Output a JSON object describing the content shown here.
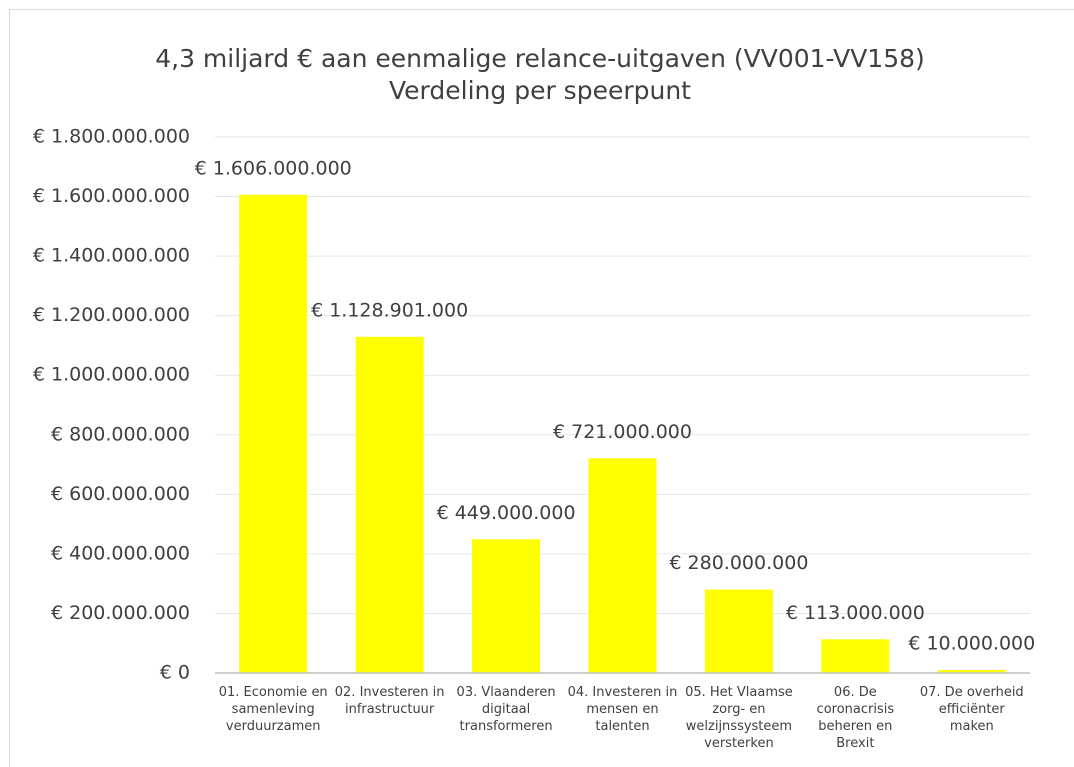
{
  "chart_data": {
    "type": "bar",
    "title": "4,3 miljard € aan eenmalige relance-uitgaven (VV001-VV158)",
    "subtitle": "Verdeling per speerpunt",
    "categories": [
      "01. Economie en samenleving verduurzamen",
      "02. Investeren in infrastructuur",
      "03. Vlaanderen digitaal transformeren",
      "04. Investeren in mensen en talenten",
      "05. Het Vlaamse zorg- en welzijnssysteem versterken",
      "06. De coronacrisis beheren en Brexit",
      "07. De overheid efficiënter maken"
    ],
    "values": [
      1606000000,
      1128901000,
      449000000,
      721000000,
      280000000,
      113000000,
      10000000
    ],
    "value_labels": [
      "€ 1.606.000.000",
      "€ 1.128.901.000",
      "€ 449.000.000",
      "€ 721.000.000",
      "€ 280.000.000",
      "€ 113.000.000",
      "€ 10.000.000"
    ],
    "color": "#ffff00",
    "ylim": [
      0,
      1800000000
    ],
    "yticks": [
      {
        "value": 0,
        "label": "€ 0"
      },
      {
        "value": 200000000,
        "label": "€ 200.000.000"
      },
      {
        "value": 400000000,
        "label": "€ 400.000.000"
      },
      {
        "value": 600000000,
        "label": "€ 600.000.000"
      },
      {
        "value": 800000000,
        "label": "€ 800.000.000"
      },
      {
        "value": 1000000000,
        "label": "€ 1.000.000.000"
      },
      {
        "value": 1200000000,
        "label": "€ 1.200.000.000"
      },
      {
        "value": 1400000000,
        "label": "€ 1.400.000.000"
      },
      {
        "value": 1600000000,
        "label": "€ 1.600.000.000"
      },
      {
        "value": 1800000000,
        "label": "€ 1.800.000.000"
      }
    ],
    "grid": true
  }
}
